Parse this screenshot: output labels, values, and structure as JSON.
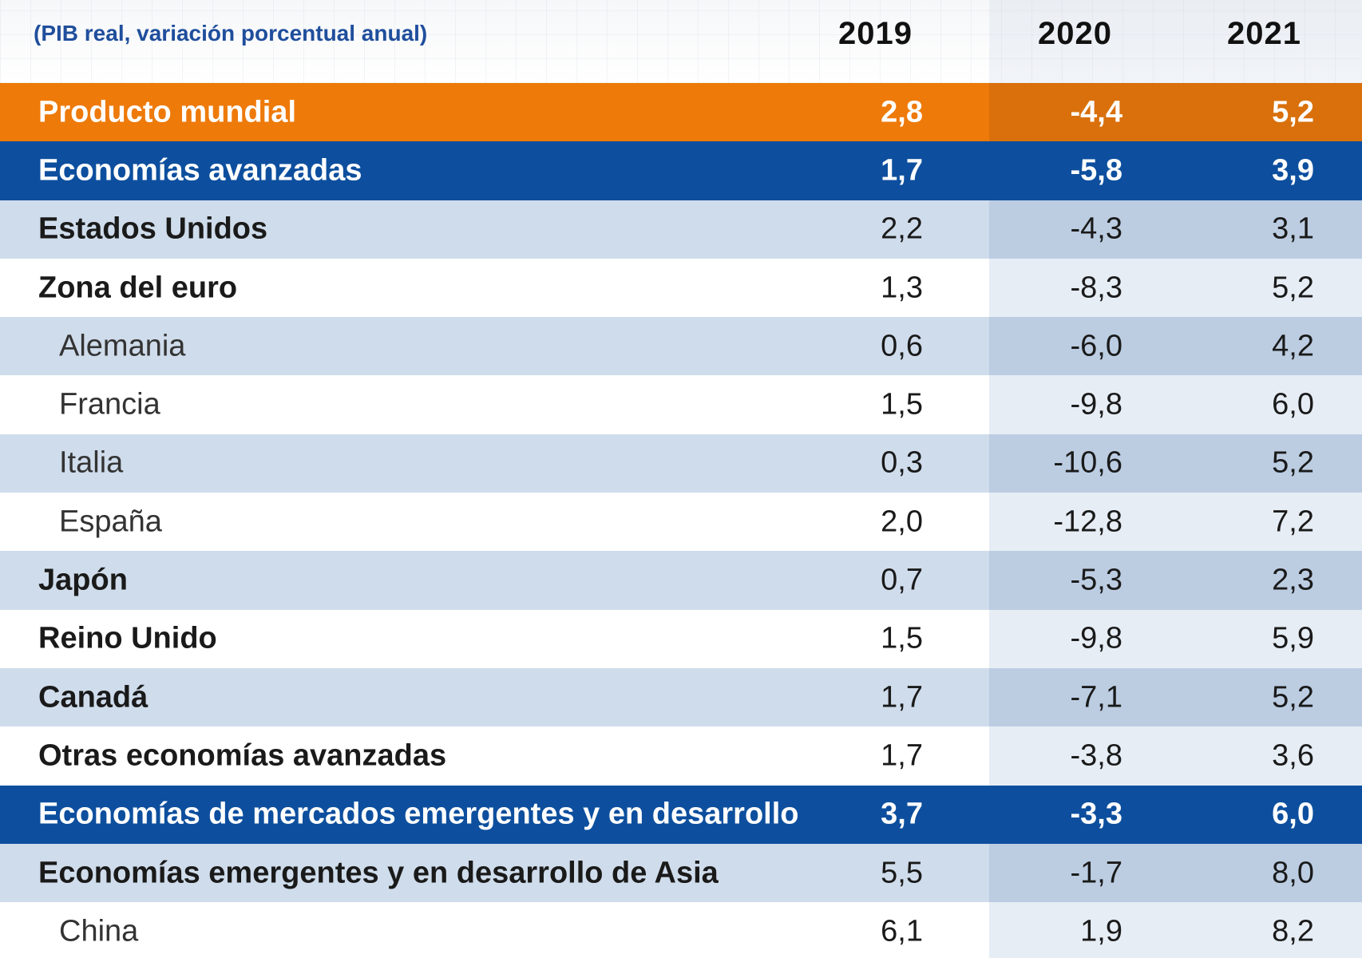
{
  "header": {
    "subtitle": "(PIB real, variación porcentual anual)",
    "years": [
      "2019",
      "2020",
      "2021"
    ]
  },
  "rows": [
    {
      "label": "Producto mundial",
      "v2019": "2,8",
      "v2020": "-4,4",
      "v2021": "5,2"
    },
    {
      "label": "Economías avanzadas",
      "v2019": "1,7",
      "v2020": "-5,8",
      "v2021": "3,9"
    },
    {
      "label": "Estados Unidos",
      "v2019": "2,2",
      "v2020": "-4,3",
      "v2021": "3,1"
    },
    {
      "label": "Zona del euro",
      "v2019": "1,3",
      "v2020": "-8,3",
      "v2021": "5,2"
    },
    {
      "label": "Alemania",
      "v2019": "0,6",
      "v2020": "-6,0",
      "v2021": "4,2"
    },
    {
      "label": "Francia",
      "v2019": "1,5",
      "v2020": "-9,8",
      "v2021": "6,0"
    },
    {
      "label": "Italia",
      "v2019": "0,3",
      "v2020": "-10,6",
      "v2021": "5,2"
    },
    {
      "label": "España",
      "v2019": "2,0",
      "v2020": "-12,8",
      "v2021": "7,2"
    },
    {
      "label": "Japón",
      "v2019": "0,7",
      "v2020": "-5,3",
      "v2021": "2,3"
    },
    {
      "label": "Reino Unido",
      "v2019": "1,5",
      "v2020": "-9,8",
      "v2021": "5,9"
    },
    {
      "label": "Canadá",
      "v2019": "1,7",
      "v2020": "-7,1",
      "v2021": "5,2"
    },
    {
      "label": "Otras economías avanzadas",
      "v2019": "1,7",
      "v2020": "-3,8",
      "v2021": "3,6"
    },
    {
      "label": "Economías de mercados emergentes y en desarrollo",
      "v2019": "3,7",
      "v2020": "-3,3",
      "v2021": "6,0"
    },
    {
      "label": "Economías emergentes y en desarrollo de Asia",
      "v2019": "5,5",
      "v2020": "-1,7",
      "v2021": "8,0"
    },
    {
      "label": "China",
      "v2019": "6,1",
      "v2020": "1,9",
      "v2021": "8,2"
    }
  ]
}
